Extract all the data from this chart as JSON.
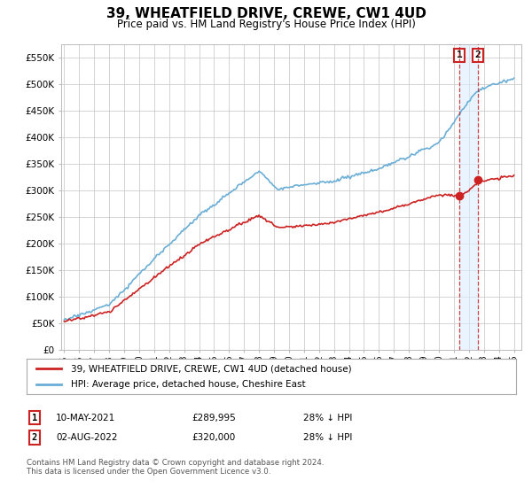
{
  "title": "39, WHEATFIELD DRIVE, CREWE, CW1 4UD",
  "subtitle": "Price paid vs. HM Land Registry's House Price Index (HPI)",
  "title_fontsize": 11,
  "subtitle_fontsize": 8.5,
  "ylabel_ticks": [
    "£0",
    "£50K",
    "£100K",
    "£150K",
    "£200K",
    "£250K",
    "£300K",
    "£350K",
    "£400K",
    "£450K",
    "£500K",
    "£550K"
  ],
  "ylabel_values": [
    0,
    50000,
    100000,
    150000,
    200000,
    250000,
    300000,
    350000,
    400000,
    450000,
    500000,
    550000
  ],
  "hpi_color": "#6aaed6",
  "price_color": "#cc2222",
  "marker_color": "#cc2222",
  "legend_label_red": "39, WHEATFIELD DRIVE, CREWE, CW1 4UD (detached house)",
  "legend_label_blue": "HPI: Average price, detached house, Cheshire East",
  "transaction1_date": "10-MAY-2021",
  "transaction1_price": "£289,995",
  "transaction1_note": "28% ↓ HPI",
  "transaction2_date": "02-AUG-2022",
  "transaction2_price": "£320,000",
  "transaction2_note": "28% ↓ HPI",
  "footnote": "Contains HM Land Registry data © Crown copyright and database right 2024.\nThis data is licensed under the Open Government Licence v3.0.",
  "background_color": "#ffffff",
  "plot_bg_color": "#ffffff",
  "grid_color": "#cccccc",
  "xlim_start": 1994.8,
  "xlim_end": 2025.5,
  "ylim_min": 0,
  "ylim_max": 575000
}
